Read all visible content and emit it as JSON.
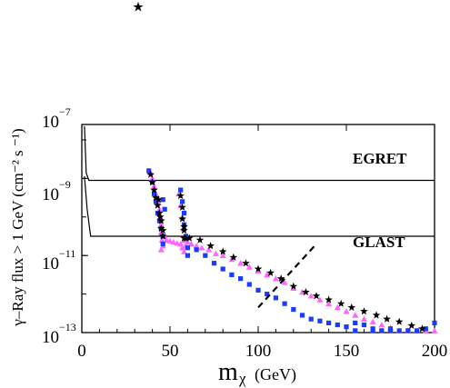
{
  "chart_data": {
    "type": "scatter",
    "xlabel_symbol": "m",
    "xlabel_subscript": "χ",
    "xlabel_unit": "(GeV)",
    "ylabel": "γ–Ray  flux > 1 GeV (cm⁻² s ⁻¹)",
    "xlim": [
      0,
      200
    ],
    "ylim_log10": [
      -13,
      -7
    ],
    "y_scale": "log",
    "x_ticks": [
      "0",
      "50",
      "100",
      "150",
      "200"
    ],
    "y_ticks": [
      {
        "base": "10",
        "exp": "−7",
        "log": -7
      },
      {
        "base": "10",
        "exp": "−9",
        "log": -9
      },
      {
        "base": "10",
        "exp": "−11",
        "log": -11
      },
      {
        "base": "10",
        "exp": "−13",
        "log": -13
      }
    ],
    "annotations": {
      "egret": "EGRET",
      "glast": "GLAST"
    },
    "sensitivity_curves": {
      "egret_log10_flux": -9.05,
      "glast_log10_flux": -10.5
    },
    "dashed_line": {
      "x": [
        100,
        133
      ],
      "log10_y": [
        -12.35,
        -10.7
      ]
    },
    "series": [
      {
        "marker": "triangle",
        "color": "#ff66ff",
        "points": [
          [
            39,
            -8.85
          ],
          [
            40,
            -9.0
          ],
          [
            41,
            -9.2
          ],
          [
            42,
            -9.4
          ],
          [
            43,
            -9.6
          ],
          [
            44,
            -9.8
          ],
          [
            44.5,
            -10.0
          ],
          [
            45,
            -10.2
          ],
          [
            45,
            -10.4
          ],
          [
            45.5,
            -10.6
          ],
          [
            46,
            -10.75
          ],
          [
            45,
            -10.85
          ],
          [
            47,
            -10.5
          ],
          [
            48,
            -10.6
          ],
          [
            50,
            -10.62
          ],
          [
            52,
            -10.65
          ],
          [
            54,
            -10.68
          ],
          [
            56,
            -10.7
          ],
          [
            57,
            -10.8
          ],
          [
            55,
            -9.4
          ],
          [
            56,
            -9.7
          ],
          [
            57,
            -10.0
          ],
          [
            57.5,
            -10.3
          ],
          [
            58,
            -10.6
          ],
          [
            58,
            -10.9
          ],
          [
            59,
            -10.75
          ],
          [
            60,
            -10.65
          ],
          [
            62,
            -10.7
          ],
          [
            65,
            -10.75
          ],
          [
            68,
            -10.8
          ],
          [
            72,
            -10.85
          ],
          [
            76,
            -10.95
          ],
          [
            80,
            -11.0
          ],
          [
            85,
            -11.1
          ],
          [
            90,
            -11.2
          ],
          [
            95,
            -11.3
          ],
          [
            100,
            -11.4
          ],
          [
            105,
            -11.5
          ],
          [
            110,
            -11.6
          ],
          [
            115,
            -11.7
          ],
          [
            120,
            -11.85
          ],
          [
            125,
            -11.95
          ],
          [
            130,
            -12.05
          ],
          [
            135,
            -12.15
          ],
          [
            140,
            -12.25
          ],
          [
            145,
            -12.35
          ],
          [
            150,
            -12.45
          ],
          [
            155,
            -12.55
          ],
          [
            160,
            -12.65
          ],
          [
            165,
            -12.72
          ],
          [
            170,
            -12.8
          ],
          [
            175,
            -12.88
          ],
          [
            180,
            -12.95
          ],
          [
            185,
            -13.0
          ],
          [
            190,
            -13.05
          ],
          [
            195,
            -13.1
          ],
          [
            200,
            -13.15
          ]
        ]
      },
      {
        "marker": "square",
        "color": "#1a3cff",
        "points": [
          [
            38,
            -8.8
          ],
          [
            40,
            -9.1
          ],
          [
            41,
            -9.4
          ],
          [
            42,
            -9.6
          ],
          [
            43,
            -9.9
          ],
          [
            44,
            -10.1
          ],
          [
            45,
            -10.3
          ],
          [
            46,
            -10.5
          ],
          [
            46,
            -10.7
          ],
          [
            47,
            -9.8
          ],
          [
            46,
            -9.55
          ],
          [
            56,
            -9.3
          ],
          [
            57,
            -9.6
          ],
          [
            58,
            -9.9
          ],
          [
            58,
            -10.2
          ],
          [
            59,
            -10.5
          ],
          [
            60,
            -10.8
          ],
          [
            60,
            -11.0
          ],
          [
            65,
            -10.85
          ],
          [
            70,
            -11.0
          ],
          [
            75,
            -11.2
          ],
          [
            80,
            -11.35
          ],
          [
            85,
            -11.5
          ],
          [
            90,
            -11.6
          ],
          [
            95,
            -11.75
          ],
          [
            100,
            -11.9
          ],
          [
            105,
            -12.0
          ],
          [
            110,
            -12.1
          ],
          [
            115,
            -12.25
          ],
          [
            120,
            -12.4
          ],
          [
            125,
            -12.55
          ],
          [
            130,
            -12.65
          ],
          [
            135,
            -12.7
          ],
          [
            140,
            -12.75
          ],
          [
            145,
            -12.8
          ],
          [
            150,
            -12.85
          ],
          [
            155,
            -12.75
          ],
          [
            160,
            -12.8
          ],
          [
            165,
            -12.9
          ],
          [
            170,
            -12.95
          ],
          [
            175,
            -12.9
          ],
          [
            180,
            -13.0
          ],
          [
            185,
            -12.95
          ],
          [
            190,
            -13.0
          ],
          [
            195,
            -12.9
          ],
          [
            200,
            -12.75
          ],
          [
            155,
            -12.95
          ],
          [
            165,
            -13.15
          ],
          [
            175,
            -13.2
          ],
          [
            190,
            -13.25
          ],
          [
            185,
            -13.2
          ]
        ]
      },
      {
        "marker": "star",
        "color": "#000000",
        "points": [
          [
            39,
            -8.9
          ],
          [
            40,
            -9.1
          ],
          [
            41,
            -9.3
          ],
          [
            42,
            -9.5
          ],
          [
            43,
            -9.7
          ],
          [
            44,
            -9.9
          ],
          [
            45,
            -10.1
          ],
          [
            45,
            -10.3
          ],
          [
            46,
            -10.5
          ],
          [
            43.5,
            -9.55
          ],
          [
            44.5,
            -10.0
          ],
          [
            46,
            -10.35
          ],
          [
            56,
            -9.45
          ],
          [
            57,
            -9.75
          ],
          [
            57,
            -10.05
          ],
          [
            58,
            -10.35
          ],
          [
            59,
            -10.55
          ],
          [
            58,
            -10.25
          ],
          [
            58,
            -10.55
          ],
          [
            61,
            -10.55
          ],
          [
            67,
            -10.6
          ],
          [
            73,
            -10.75
          ],
          [
            80,
            -10.9
          ],
          [
            86,
            -11.05
          ],
          [
            93,
            -11.2
          ],
          [
            100,
            -11.35
          ],
          [
            107,
            -11.45
          ],
          [
            113,
            -11.6
          ],
          [
            120,
            -11.8
          ],
          [
            127,
            -11.95
          ],
          [
            133,
            -12.05
          ],
          [
            140,
            -12.15
          ],
          [
            147,
            -12.25
          ],
          [
            153,
            -12.35
          ],
          [
            160,
            -12.45
          ],
          [
            167,
            -12.55
          ],
          [
            173,
            -12.65
          ],
          [
            180,
            -12.72
          ],
          [
            187,
            -12.82
          ],
          [
            193,
            -12.9
          ]
        ]
      }
    ]
  }
}
